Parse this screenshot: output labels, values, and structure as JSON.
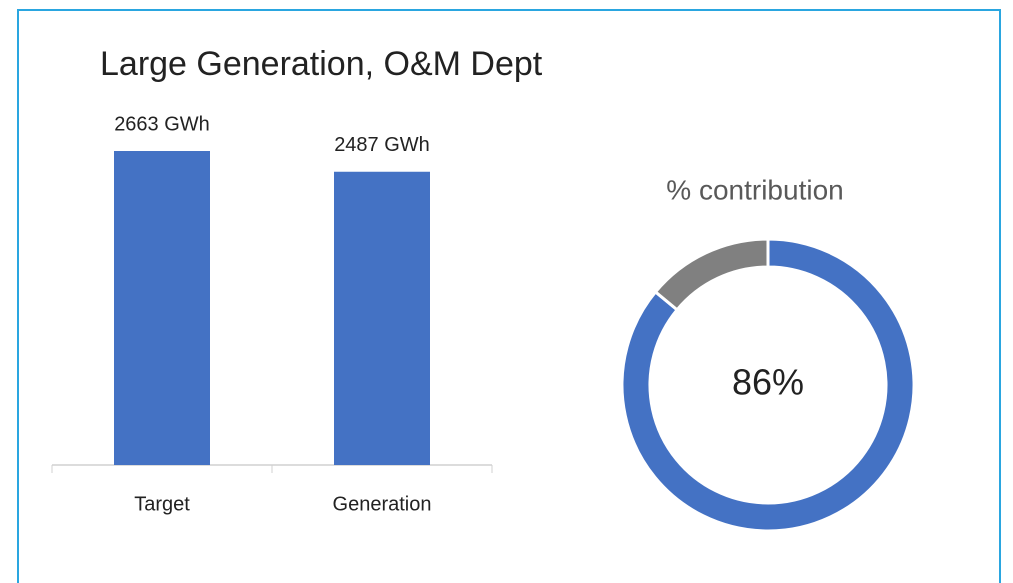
{
  "chart_data": [
    {
      "type": "bar",
      "title": "Large Generation, O&M Dept",
      "categories": [
        "Target",
        "Generation"
      ],
      "values": [
        2663,
        2487
      ],
      "value_labels": [
        "2663 GWh",
        "2487 GWh"
      ],
      "color": "#4472c4"
    },
    {
      "type": "donut",
      "title": "% contribution",
      "values": [
        86,
        14
      ],
      "value_labels": [
        "86%"
      ],
      "colors": [
        "#4472c4",
        "#808080"
      ]
    }
  ]
}
